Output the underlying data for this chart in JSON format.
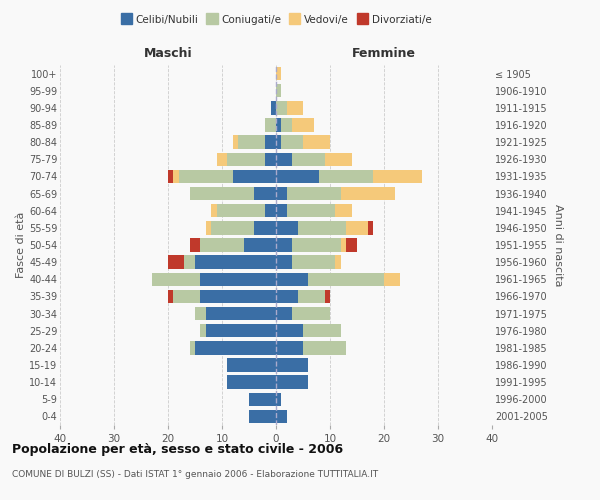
{
  "age_groups": [
    "0-4",
    "5-9",
    "10-14",
    "15-19",
    "20-24",
    "25-29",
    "30-34",
    "35-39",
    "40-44",
    "45-49",
    "50-54",
    "55-59",
    "60-64",
    "65-69",
    "70-74",
    "75-79",
    "80-84",
    "85-89",
    "90-94",
    "95-99",
    "100+"
  ],
  "birth_years": [
    "2001-2005",
    "1996-2000",
    "1991-1995",
    "1986-1990",
    "1981-1985",
    "1976-1980",
    "1971-1975",
    "1966-1970",
    "1961-1965",
    "1956-1960",
    "1951-1955",
    "1946-1950",
    "1941-1945",
    "1936-1940",
    "1931-1935",
    "1926-1930",
    "1921-1925",
    "1916-1920",
    "1911-1915",
    "1906-1910",
    "≤ 1905"
  ],
  "males": {
    "celibi": [
      5,
      5,
      9,
      9,
      15,
      13,
      13,
      14,
      14,
      15,
      6,
      4,
      2,
      4,
      8,
      2,
      2,
      0,
      1,
      0,
      0
    ],
    "coniugati": [
      0,
      0,
      0,
      0,
      1,
      1,
      2,
      5,
      9,
      2,
      8,
      8,
      9,
      12,
      10,
      7,
      5,
      2,
      0,
      0,
      0
    ],
    "vedovi": [
      0,
      0,
      0,
      0,
      0,
      0,
      0,
      0,
      0,
      0,
      0,
      1,
      1,
      0,
      1,
      2,
      1,
      0,
      0,
      0,
      0
    ],
    "divorziati": [
      0,
      0,
      0,
      0,
      0,
      0,
      0,
      1,
      0,
      3,
      2,
      0,
      0,
      0,
      1,
      0,
      0,
      0,
      0,
      0,
      0
    ]
  },
  "females": {
    "nubili": [
      2,
      1,
      6,
      6,
      5,
      5,
      3,
      4,
      6,
      3,
      3,
      4,
      2,
      2,
      8,
      3,
      1,
      1,
      0,
      0,
      0
    ],
    "coniugate": [
      0,
      0,
      0,
      0,
      8,
      7,
      7,
      5,
      14,
      8,
      9,
      9,
      9,
      10,
      10,
      6,
      4,
      2,
      2,
      1,
      0
    ],
    "vedove": [
      0,
      0,
      0,
      0,
      0,
      0,
      0,
      0,
      3,
      1,
      1,
      4,
      3,
      10,
      9,
      5,
      5,
      4,
      3,
      0,
      1
    ],
    "divorziate": [
      0,
      0,
      0,
      0,
      0,
      0,
      0,
      1,
      0,
      0,
      2,
      1,
      0,
      0,
      0,
      0,
      0,
      0,
      0,
      0,
      0
    ]
  },
  "colors": {
    "celibi": "#3a6ea5",
    "coniugati": "#b8c9a3",
    "vedovi": "#f5c97a",
    "divorziati": "#c0392b"
  },
  "xlim": 40,
  "title": "Popolazione per età, sesso e stato civile - 2006",
  "subtitle": "COMUNE DI BULZI (SS) - Dati ISTAT 1° gennaio 2006 - Elaborazione TUTTITALIA.IT",
  "ylabel_left": "Fasce di età",
  "ylabel_right": "Anni di nascita",
  "xlabel_left": "Maschi",
  "xlabel_right": "Femmine",
  "legend_labels": [
    "Celibi/Nubili",
    "Coniugati/e",
    "Vedovi/e",
    "Divorziati/e"
  ],
  "bg_color": "#f9f9f9",
  "grid_color": "#cccccc"
}
